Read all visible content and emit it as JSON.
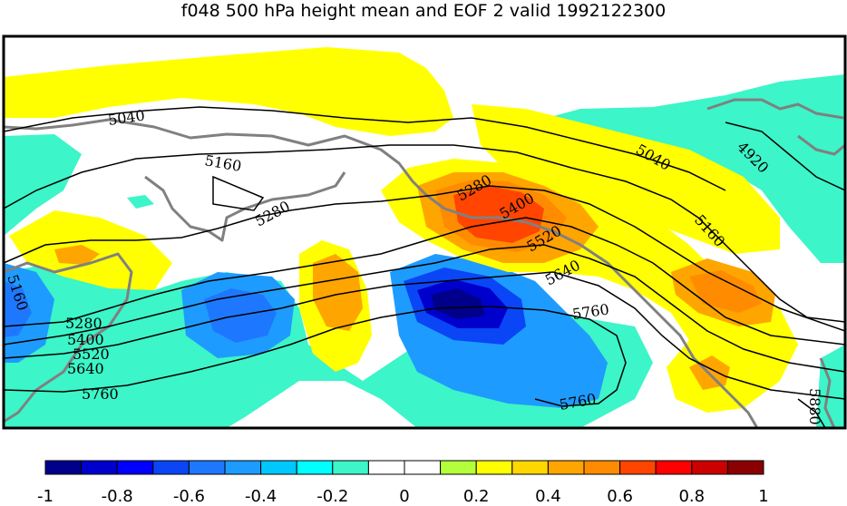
{
  "title": "f048 500 hPa height mean and EOF 2 valid 1992122300",
  "map": {
    "contour_labels": [
      "5040",
      "5160",
      "5280",
      "5280",
      "5400",
      "5520",
      "5640",
      "5760",
      "5040",
      "4920",
      "5160",
      "5160",
      "5280",
      "5400",
      "5520",
      "5640",
      "5760",
      "5760",
      "5880"
    ]
  },
  "colorbar": {
    "colors": [
      "#00008b",
      "#0000cd",
      "#0000ff",
      "#0a46f5",
      "#1e78ff",
      "#1e9bff",
      "#00c8ff",
      "#00ffff",
      "#3cf5c8",
      "#ffffff",
      "#ffffff",
      "#b4ff3c",
      "#ffff00",
      "#ffd700",
      "#ffa500",
      "#ff8c00",
      "#ff4500",
      "#ff0000",
      "#cd0000",
      "#8b0000"
    ],
    "tick_labels": [
      "-1",
      "-0.8",
      "-0.6",
      "-0.4",
      "-0.2",
      "0",
      "0.2",
      "0.4",
      "0.6",
      "0.8",
      "1"
    ]
  }
}
